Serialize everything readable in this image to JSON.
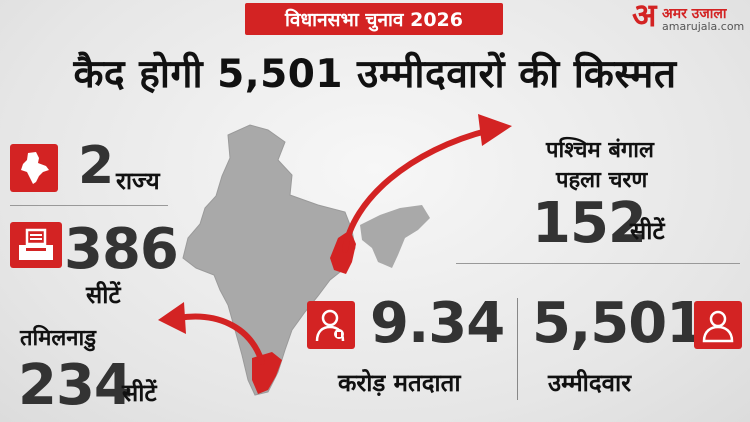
{
  "banner": "विधानसभा चुनाव 2026",
  "brand": {
    "logo": "अ",
    "name": "अमर उजाला",
    "site": "amarujala.com"
  },
  "title": "कैद होगी 5,501 उम्मीदवारों की किस्मत",
  "states": {
    "value": "2",
    "label": "राज्य"
  },
  "seats_total": {
    "value": "386",
    "label": "सीटें"
  },
  "tamilnadu": {
    "name": "तमिलनाडु",
    "value": "234",
    "label": "सीटें"
  },
  "bengal": {
    "name": "पश्चिम बंगाल",
    "phase": "पहला चरण",
    "value": "152",
    "label": "सीटें"
  },
  "voters": {
    "value": "9.34",
    "label": "करोड़ मतदाता"
  },
  "candidates": {
    "value": "5,501",
    "label": "उम्मीदवार"
  },
  "icons": [
    "india-map-icon",
    "ballot-box-icon",
    "voter-icon",
    "candidate-icon"
  ],
  "colors": {
    "accent": "#d32323",
    "map": "#a9a9a9",
    "text": "#111111"
  }
}
